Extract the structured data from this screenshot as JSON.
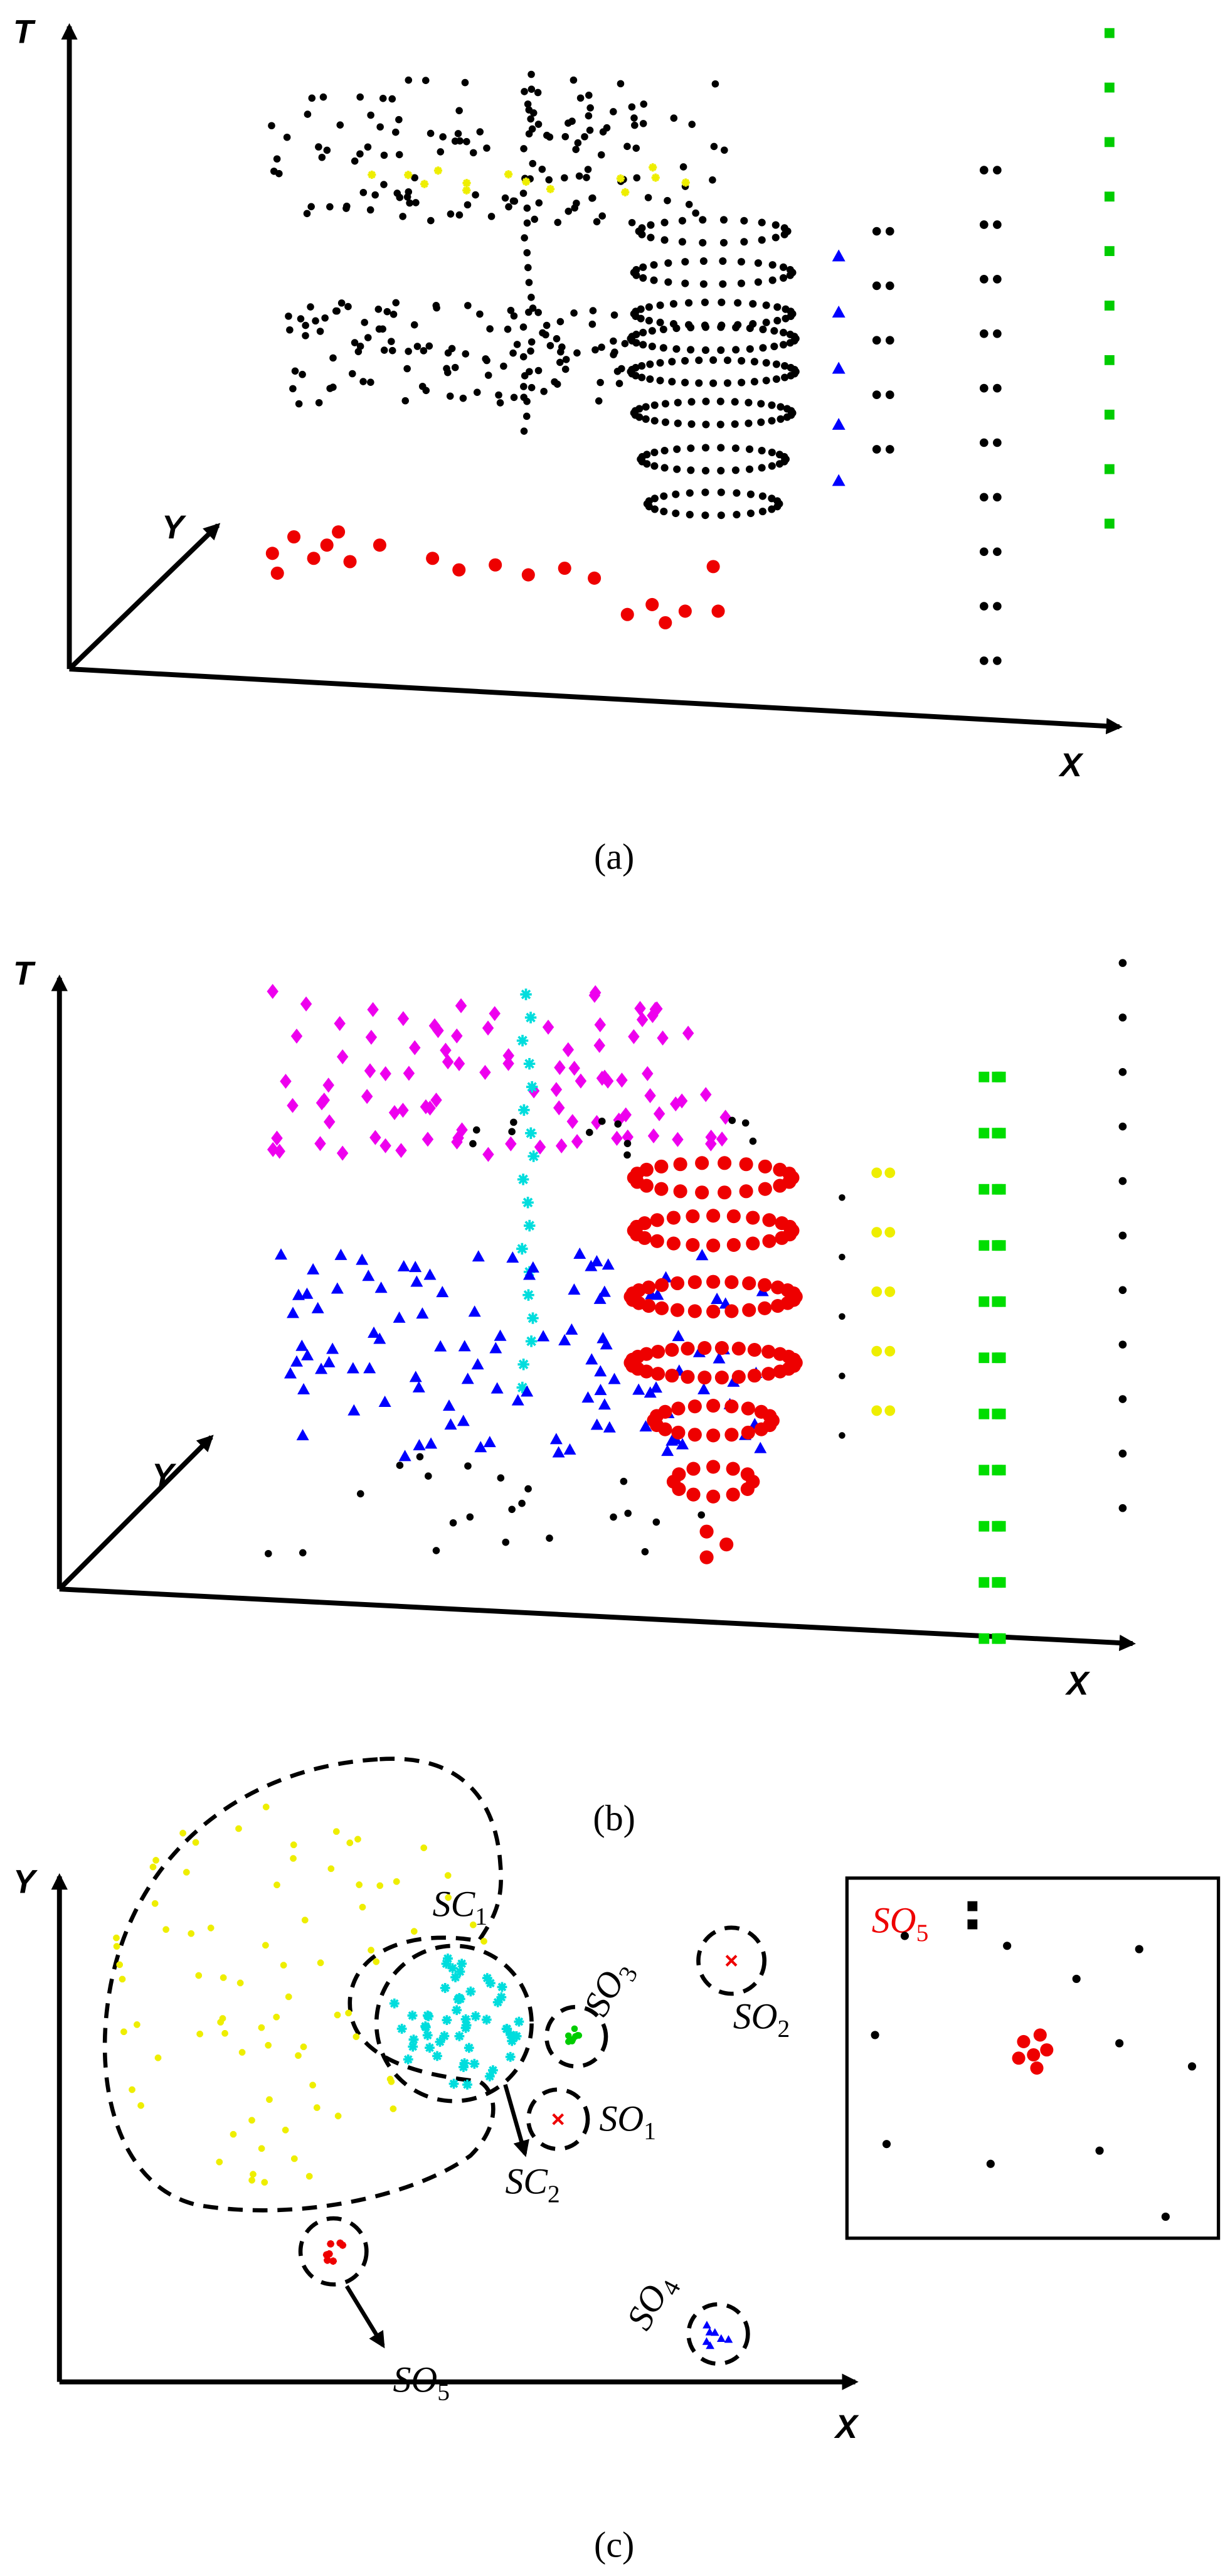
{
  "panels": [
    {
      "caption": "(a)",
      "axes": {
        "t": "T",
        "y": "Y",
        "x": "X"
      }
    },
    {
      "caption": "(b)",
      "axes": {
        "t": "T",
        "y": "Y",
        "x": "X"
      }
    },
    {
      "caption": "(c)",
      "axes": {
        "y": "Y",
        "x": "X"
      },
      "labels": [
        {
          "main": "SC",
          "sub": "1"
        },
        {
          "main": "SO",
          "sub": "3"
        },
        {
          "main": "SO",
          "sub": "2"
        },
        {
          "main": "SO",
          "sub": "1"
        },
        {
          "main": "SC",
          "sub": "2"
        },
        {
          "main": "SO",
          "sub": "5"
        },
        {
          "main": "SO",
          "sub": "4"
        }
      ],
      "inset_label": {
        "main": "SO",
        "sub": "5"
      }
    }
  ]
}
